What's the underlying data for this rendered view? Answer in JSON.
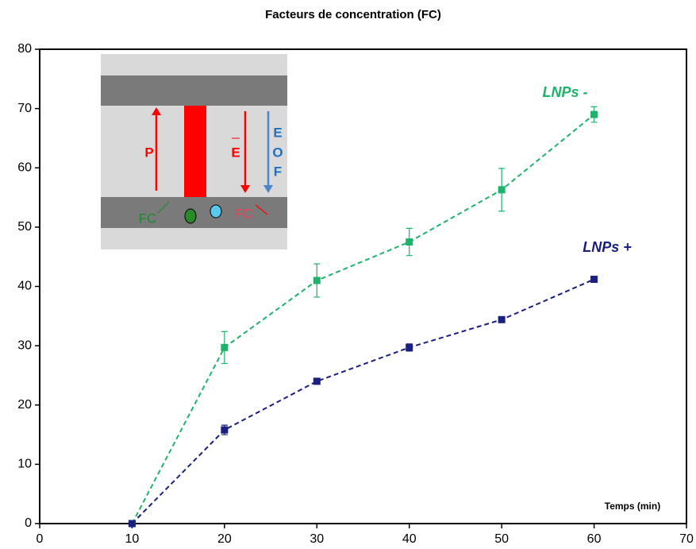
{
  "chart_data": {
    "type": "line",
    "title": "Facteurs de concentration (FC)",
    "x_label": "Temps (min)",
    "x": [
      10,
      20,
      30,
      40,
      50,
      60
    ],
    "series": [
      {
        "name": "LNPs -",
        "color": "#1db36a",
        "values": [
          0,
          29.7,
          41,
          47.5,
          56.3,
          69
        ],
        "errors": [
          0,
          2.7,
          2.8,
          2.3,
          3.6,
          1.3
        ]
      },
      {
        "name": "LNPs +",
        "color": "#1a1f80",
        "values": [
          0,
          15.8,
          24,
          29.7,
          34.4,
          41.2
        ],
        "errors": [
          0,
          0.8,
          0.3,
          0.6,
          0.3,
          0.3
        ]
      }
    ],
    "xlim": [
      0,
      70
    ],
    "xticks": [
      0,
      10,
      20,
      30,
      40,
      50,
      60,
      70
    ],
    "ylim": [
      0,
      80
    ],
    "yticks": [
      0,
      10,
      20,
      30,
      40,
      50,
      60,
      70,
      80
    ],
    "grid": false,
    "annotations": [
      "P",
      "E",
      "E",
      "O",
      "F",
      "FC",
      "FC"
    ]
  }
}
